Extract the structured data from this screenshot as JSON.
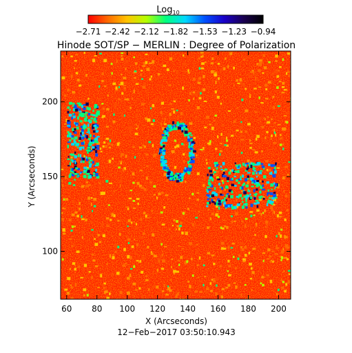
{
  "colorbar": {
    "title": "Log",
    "title_subscript": "10",
    "ticks": [
      "−2.71",
      "−2.42",
      "−2.12",
      "−1.82",
      "−1.53",
      "−1.23",
      "−0.94"
    ]
  },
  "chart_data": {
    "type": "heatmap",
    "title": "Hinode SOT/SP − MERLIN : Degree of Polarization",
    "xlabel": "X (Arcseconds)",
    "ylabel": "Y (Arcseconds)",
    "footer": "12−Feb−2017 03:50:10.943",
    "xlim": [
      56,
      208
    ],
    "ylim": [
      68,
      234
    ],
    "xticks": [
      60,
      80,
      100,
      120,
      140,
      160,
      180,
      200
    ],
    "yticks": [
      100,
      150,
      200
    ],
    "value_range": [
      -2.71,
      -0.94
    ],
    "colormap": [
      "#ff0000",
      "#ff6a00",
      "#ffc400",
      "#b4ff00",
      "#00ff80",
      "#00d8ff",
      "#0050ff",
      "#1a00c8",
      "#1a0050",
      "#000000"
    ],
    "background_value": -2.65,
    "features": [
      {
        "region": "left network",
        "x": [
          60,
          80
        ],
        "y": [
          150,
          200
        ],
        "level": "high"
      },
      {
        "region": "ring network",
        "x": [
          122,
          142
        ],
        "y": [
          150,
          185
        ],
        "level": "high"
      },
      {
        "region": "right network",
        "x": [
          152,
          198
        ],
        "y": [
          130,
          160
        ],
        "level": "high"
      }
    ]
  }
}
